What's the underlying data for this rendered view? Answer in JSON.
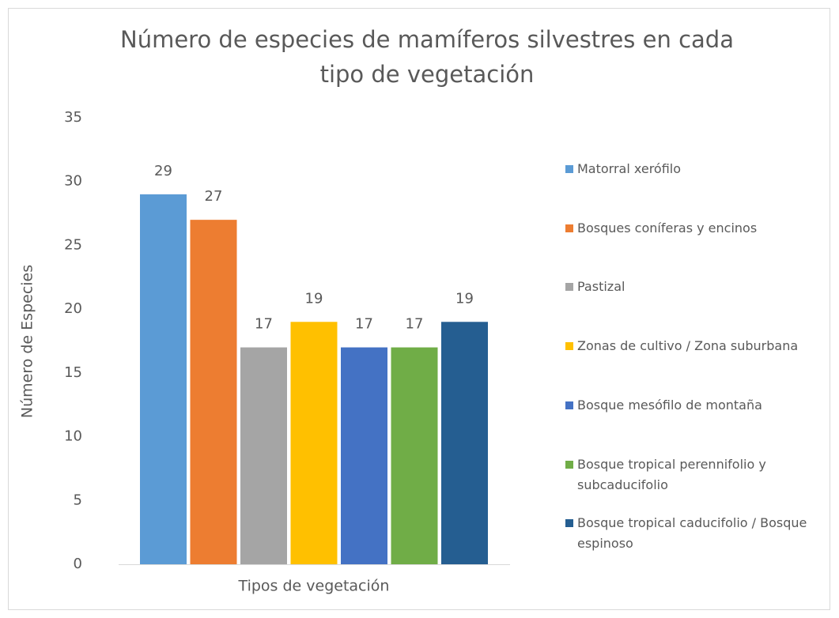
{
  "chart_data": {
    "type": "bar",
    "title": "Número de especies de mamíferos silvestres en cada tipo de vegetación",
    "x_label": "Tipos de vegetación",
    "y_label": "Número de Especies",
    "categories": [
      "Tipos de vegetación"
    ],
    "series": [
      {
        "name": "Matorral xerófilo",
        "color": "#5b9bd5",
        "values": [
          29
        ]
      },
      {
        "name": "Bosques coníferas y encinos",
        "color": "#ed7d31",
        "values": [
          27
        ]
      },
      {
        "name": "Pastizal",
        "color": "#a5a5a5",
        "values": [
          17
        ]
      },
      {
        "name": "Zonas de cultivo / Zona suburbana",
        "color": "#ffc000",
        "values": [
          19
        ]
      },
      {
        "name": "Bosque mesófilo de montaña",
        "color": "#4472c4",
        "values": [
          17
        ]
      },
      {
        "name": "Bosque tropical perennifolio y subcaducifolio",
        "color": "#70ad47",
        "values": [
          17
        ]
      },
      {
        "name": "Bosque tropical caducifolio / Bosque espinoso",
        "color": "#255e91",
        "values": [
          19
        ]
      }
    ],
    "ylim": [
      0,
      35
    ],
    "yticks": [
      0,
      5,
      10,
      15,
      20,
      25,
      30,
      35
    ],
    "grid": false,
    "legend": "right"
  }
}
